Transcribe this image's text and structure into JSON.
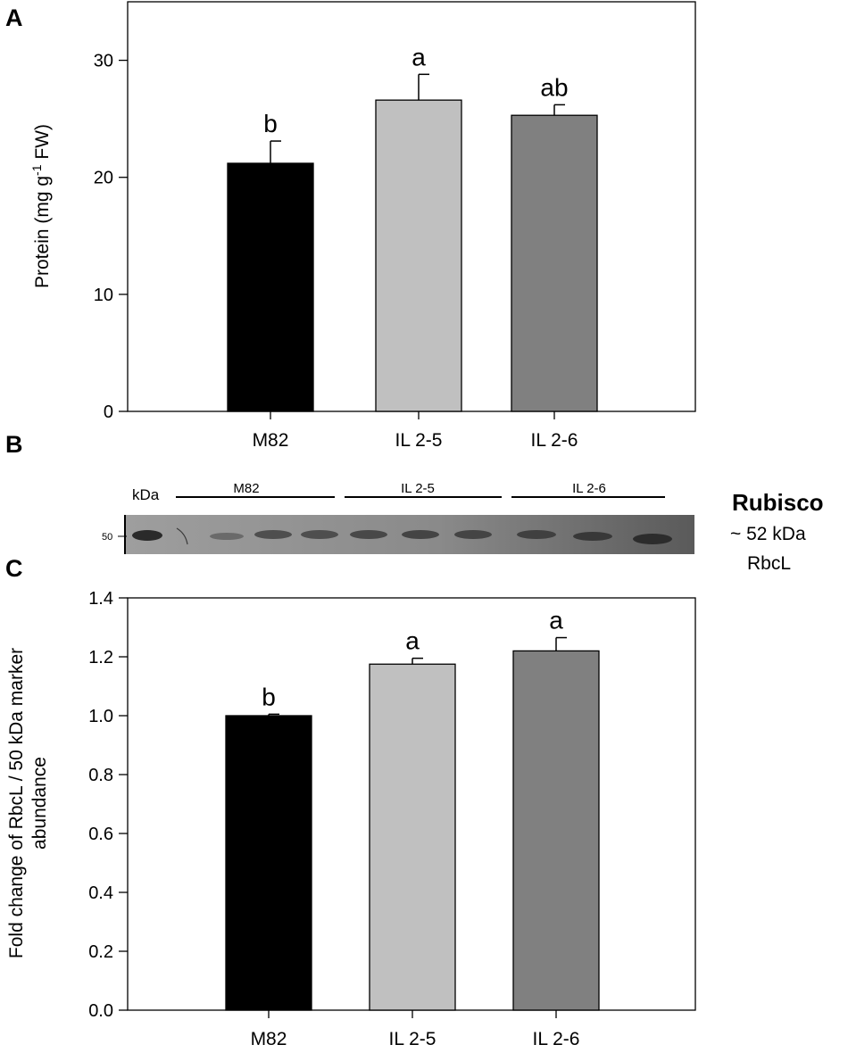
{
  "panels": {
    "a": {
      "letter": "A"
    },
    "b": {
      "letter": "B"
    },
    "c": {
      "letter": "C"
    }
  },
  "gel": {
    "kda_label": "kDa",
    "marker_label": "50",
    "lane_groups": [
      "M82",
      "IL 2-5",
      "IL 2-6"
    ],
    "protein_title": "Rubisco",
    "protein_size": "~ 52 kDa",
    "protein_name": "RbcL"
  },
  "chart_data": [
    {
      "type": "bar",
      "categories": [
        "M82",
        "IL 2-5",
        "IL 2-6"
      ],
      "values": [
        21.2,
        26.6,
        25.3
      ],
      "errors": [
        1.9,
        2.2,
        0.9
      ],
      "significance": [
        "b",
        "a",
        "ab"
      ],
      "colors": [
        "#000000",
        "#c0c0c0",
        "#808080"
      ],
      "ylabel_main": "Protein (mg g",
      "ylabel_sup": "-1",
      "ylabel_tail": " FW)",
      "ylim": [
        0,
        35
      ],
      "yticks": [
        "0",
        "10",
        "20",
        "30"
      ]
    },
    {
      "type": "bar",
      "categories": [
        "M82",
        "IL 2-5",
        "IL 2-6"
      ],
      "values": [
        1.0,
        1.175,
        1.22
      ],
      "errors": [
        0.005,
        0.02,
        0.045
      ],
      "significance": [
        "b",
        "a",
        "a"
      ],
      "colors": [
        "#000000",
        "#c0c0c0",
        "#808080"
      ],
      "ylabel_line1": "Fold change of RbcL / 50 kDa marker",
      "ylabel_line2": "abundance",
      "ylim": [
        0,
        1.4
      ],
      "yticks": [
        "0.0",
        "0.2",
        "0.4",
        "0.6",
        "0.8",
        "1.0",
        "1.2",
        "1.4"
      ]
    }
  ]
}
